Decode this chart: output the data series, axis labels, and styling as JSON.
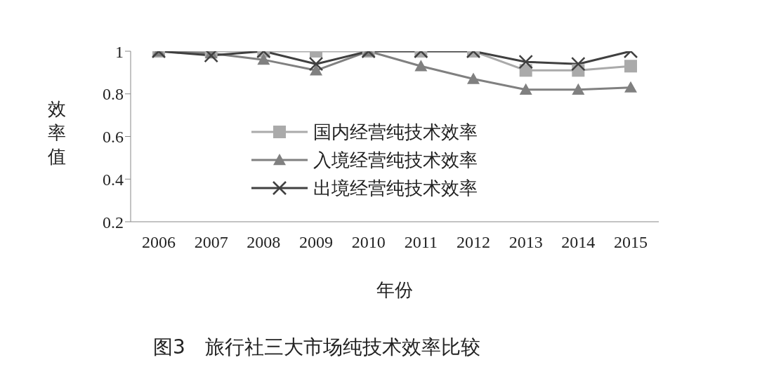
{
  "chart_data": {
    "type": "line",
    "title": "图3　旅行社三大市场纯技术效率比较",
    "xlabel": "年份",
    "ylabel": "效率值",
    "categories": [
      "2006",
      "2007",
      "2008",
      "2009",
      "2010",
      "2011",
      "2012",
      "2013",
      "2014",
      "2015"
    ],
    "series": [
      {
        "name": "国内经营纯技术效率",
        "color": "#aaaaaa",
        "marker": "square",
        "values": [
          1,
          1,
          1,
          1,
          1,
          1,
          1,
          0.91,
          0.91,
          0.93
        ]
      },
      {
        "name": "入境经营纯技术效率",
        "color": "#808080",
        "marker": "triangle",
        "values": [
          1,
          0.99,
          0.96,
          0.91,
          1,
          0.93,
          0.87,
          0.82,
          0.82,
          0.83
        ]
      },
      {
        "name": "出境经营纯技术效率",
        "color": "#404040",
        "marker": "cross",
        "values": [
          1,
          0.98,
          1,
          0.94,
          1,
          1,
          1,
          0.95,
          0.94,
          1
        ]
      }
    ],
    "ylim": [
      0.2,
      1
    ],
    "yticks": [
      0.2,
      0.4,
      0.6,
      0.8,
      1
    ],
    "grid": false,
    "legend": "center",
    "line_style": "solid"
  }
}
